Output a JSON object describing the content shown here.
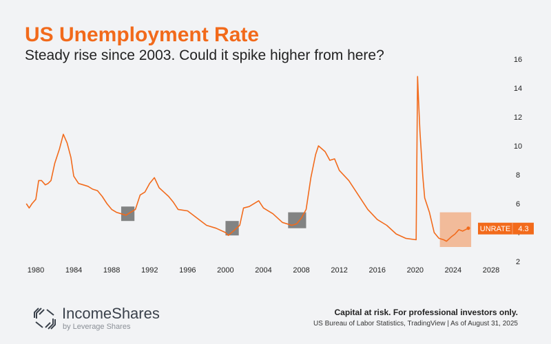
{
  "header": {
    "title": "US Unemployment Rate",
    "subtitle": "Steady rise since 2003. Could it spike higher from here?"
  },
  "footer": {
    "brand": "IncomeShares",
    "brand_sub": "by Leverage Shares",
    "risk": "Capital at risk. For professional investors only.",
    "source": "US Bureau of Labor Statistics, TradingView | As of August 31, 2025"
  },
  "chart_data": {
    "type": "line",
    "title": "US Unemployment Rate",
    "xlim": [
      1978,
      2030
    ],
    "ylim": [
      2,
      16
    ],
    "x_ticks": [
      "1980",
      "1984",
      "1988",
      "1992",
      "1996",
      "2000",
      "2004",
      "2008",
      "2012",
      "2016",
      "2020",
      "2024",
      "2028"
    ],
    "y_ticks": [
      "2",
      "4",
      "6",
      "8",
      "10",
      "12",
      "14",
      "16"
    ],
    "y_axis_position": "right",
    "grid": false,
    "series": [
      {
        "name": "UNRATE",
        "color": "#f26a1b",
        "last_value": "4.3",
        "x": [
          1979.0,
          1979.3,
          1979.6,
          1980.0,
          1980.3,
          1980.6,
          1981.0,
          1981.3,
          1981.6,
          1982.0,
          1982.5,
          1982.9,
          1983.3,
          1983.7,
          1984.0,
          1984.5,
          1985.0,
          1985.5,
          1986.0,
          1986.5,
          1987.0,
          1987.5,
          1988.0,
          1988.5,
          1989.0,
          1989.5,
          1990.0,
          1990.5,
          1991.0,
          1991.5,
          1992.0,
          1992.5,
          1993.0,
          1993.5,
          1994.0,
          1994.5,
          1995.0,
          1996.0,
          1997.0,
          1998.0,
          1999.0,
          2000.0,
          2000.3,
          2001.0,
          2001.5,
          2001.9,
          2002.5,
          2003.5,
          2004.0,
          2005.0,
          2006.0,
          2007.0,
          2007.5,
          2008.0,
          2008.5,
          2009.0,
          2009.5,
          2009.8,
          2010.5,
          2011.0,
          2011.5,
          2012.0,
          2013.0,
          2014.0,
          2015.0,
          2016.0,
          2017.0,
          2018.0,
          2019.0,
          2020.1,
          2020.25,
          2020.35,
          2020.5,
          2020.8,
          2021.0,
          2021.5,
          2022.0,
          2022.5,
          2023.0,
          2023.3,
          2023.8,
          2024.2,
          2024.6,
          2025.0,
          2025.3,
          2025.6
        ],
        "y": [
          6.0,
          5.7,
          6.0,
          6.3,
          7.6,
          7.6,
          7.3,
          7.4,
          7.6,
          8.8,
          9.8,
          10.8,
          10.2,
          9.2,
          7.9,
          7.4,
          7.3,
          7.2,
          7.0,
          6.9,
          6.5,
          6.0,
          5.6,
          5.4,
          5.3,
          5.2,
          5.4,
          5.6,
          6.6,
          6.8,
          7.4,
          7.8,
          7.1,
          6.8,
          6.5,
          6.1,
          5.6,
          5.5,
          5.0,
          4.5,
          4.3,
          4.0,
          3.8,
          4.2,
          4.5,
          5.7,
          5.8,
          6.2,
          5.7,
          5.3,
          4.7,
          4.5,
          4.6,
          5.0,
          5.6,
          7.8,
          9.4,
          10.0,
          9.6,
          9.0,
          9.1,
          8.3,
          7.6,
          6.6,
          5.6,
          4.9,
          4.5,
          3.9,
          3.6,
          3.5,
          14.8,
          13.2,
          11.0,
          7.9,
          6.4,
          5.4,
          4.0,
          3.6,
          3.5,
          3.4,
          3.7,
          3.9,
          4.2,
          4.1,
          4.2,
          4.3
        ]
      }
    ],
    "highlights": [
      {
        "x": [
          1989.0,
          1990.4
        ],
        "y": [
          4.8,
          5.8
        ],
        "color": "#6e6e6e"
      },
      {
        "x": [
          2000.0,
          2001.4
        ],
        "y": [
          3.8,
          4.8
        ],
        "color": "#6e6e6e"
      },
      {
        "x": [
          2006.6,
          2008.5
        ],
        "y": [
          4.3,
          5.4
        ],
        "color": "#6e6e6e"
      },
      {
        "x": [
          2022.6,
          2025.9
        ],
        "y": [
          3.0,
          5.4
        ],
        "color": "#f2b08a"
      }
    ]
  }
}
